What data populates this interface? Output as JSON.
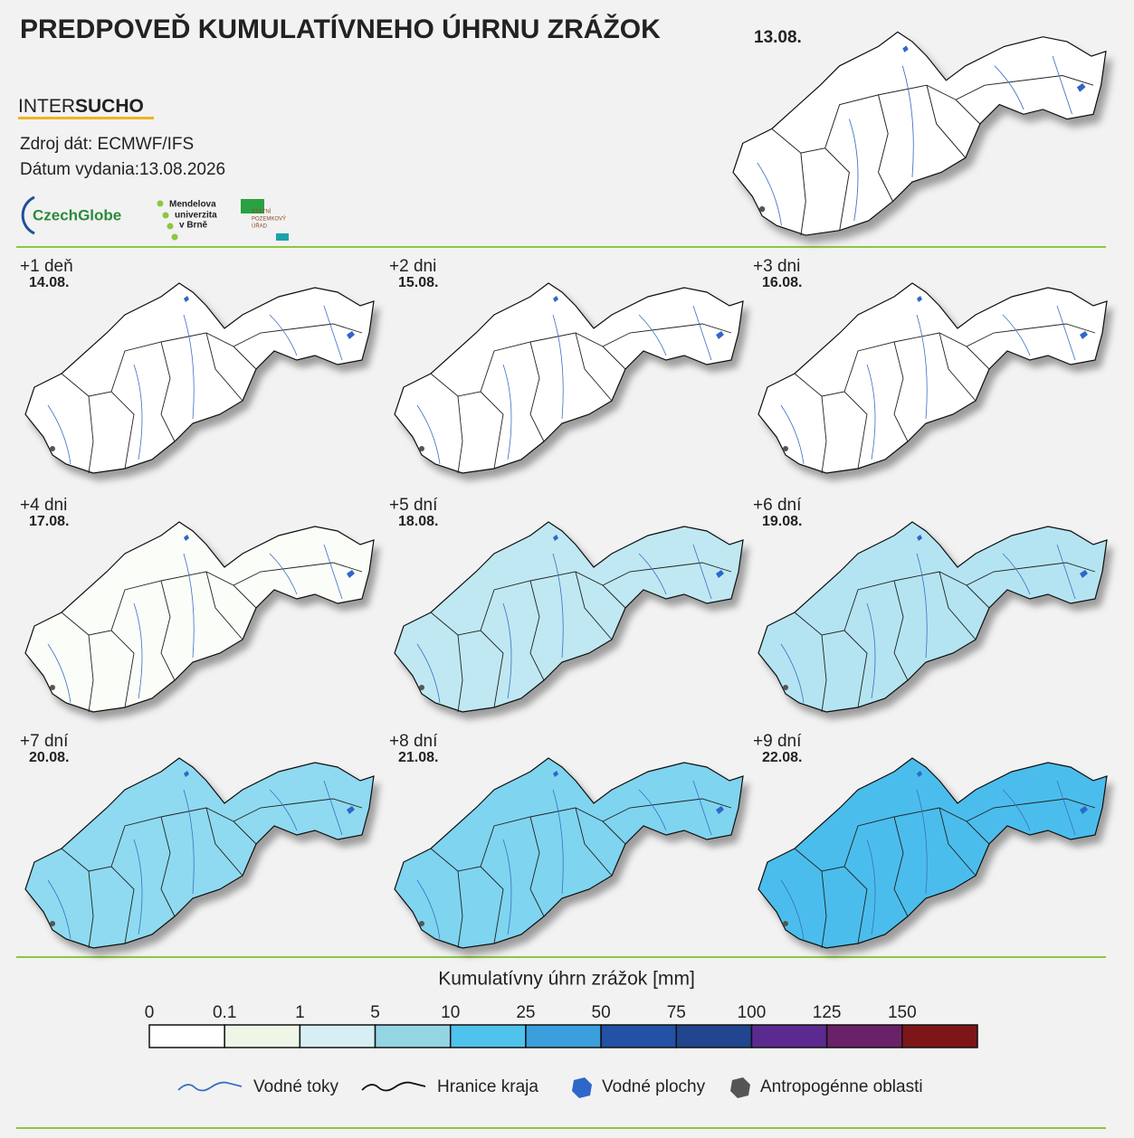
{
  "header": {
    "title": "PREDPOVEĎ KUMULATÍVNEHO ÚHRNU ZRÁŽOK",
    "brand_light": "INTER",
    "brand_bold": "SUCHO",
    "source": "Zdroj dát: ECMWF/IFS",
    "issued": "Dátum vydania:13.08.2026",
    "logo_czechglobe": "CzechGlobe",
    "logo_mendel": [
      "Mendelova",
      "univerzita",
      "v Brně"
    ],
    "logo_spu": [
      "STÁTNÍ",
      "POZEMKOVÝ",
      "ÚŘAD"
    ]
  },
  "current_map": {
    "date": "13.08.",
    "color": "#ffffff"
  },
  "panels": [
    {
      "lead": "+1 deň",
      "date": "14.08.",
      "color": "#ffffff"
    },
    {
      "lead": "+2 dni",
      "date": "15.08.",
      "color": "#ffffff"
    },
    {
      "lead": "+3 dni",
      "date": "16.08.",
      "color": "#ffffff"
    },
    {
      "lead": "+4 dni",
      "date": "17.08.",
      "color": "#fbfdf8"
    },
    {
      "lead": "+5 dní",
      "date": "18.08.",
      "color": "#bfe8f2"
    },
    {
      "lead": "+6 dní",
      "date": "19.08.",
      "color": "#b4e4f2"
    },
    {
      "lead": "+7 dní",
      "date": "20.08.",
      "color": "#8fdaf0"
    },
    {
      "lead": "+8 dní",
      "date": "21.08.",
      "color": "#7fd4f0"
    },
    {
      "lead": "+9 dní",
      "date": "22.08.",
      "color": "#4cbdec"
    }
  ],
  "legend": {
    "title": "Kumulatívny úhrn zrážok [mm]",
    "ticks": [
      0,
      0.1,
      1,
      5,
      10,
      25,
      50,
      75,
      100,
      125,
      150
    ],
    "colors": [
      "#ffffff",
      "#eef7e6",
      "#d6eef4",
      "#94d5e4",
      "#4fc3ec",
      "#3a9fdc",
      "#2251a6",
      "#22458f",
      "#5b2a91",
      "#6b2168",
      "#7d1618"
    ]
  },
  "key": {
    "items": [
      {
        "label": "Vodné toky",
        "color": "#3a6fc4"
      },
      {
        "label": "Hranice kraja",
        "color": "#111111"
      },
      {
        "label": "Vodné plochy",
        "color": "#2f66c9"
      },
      {
        "label": "Antropogénne oblasti",
        "color": "#555555"
      }
    ]
  }
}
